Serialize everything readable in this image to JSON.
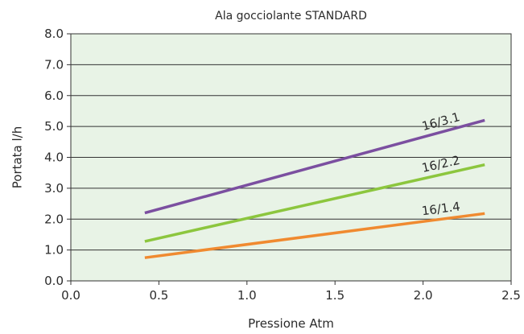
{
  "chart_data": {
    "type": "line",
    "title": "Ala gocciolante STANDARD",
    "xlabel": "Pressione Atm",
    "ylabel": "Portata l/h",
    "xlim": [
      0,
      2.5
    ],
    "ylim": [
      0,
      8
    ],
    "xticks": [
      "0.0",
      "0.5",
      "1.0",
      "1.5",
      "2.0",
      "2.5"
    ],
    "yticks": [
      "0.0",
      "1.0",
      "2.0",
      "3.0",
      "4.0",
      "5.0",
      "6.0",
      "7.0",
      "8.0"
    ],
    "grid": "horizontal",
    "background": "#e8f3e6",
    "series": [
      {
        "name": "16/3.1",
        "color": "#7b4fa0",
        "x": [
          0.42,
          2.35
        ],
        "y": [
          2.2,
          5.2
        ]
      },
      {
        "name": "16/2.2",
        "color": "#8cc63e",
        "x": [
          0.42,
          2.35
        ],
        "y": [
          1.28,
          3.76
        ]
      },
      {
        "name": "16/1.4",
        "color": "#f08a30",
        "x": [
          0.42,
          2.35
        ],
        "y": [
          0.75,
          2.18
        ]
      }
    ]
  }
}
